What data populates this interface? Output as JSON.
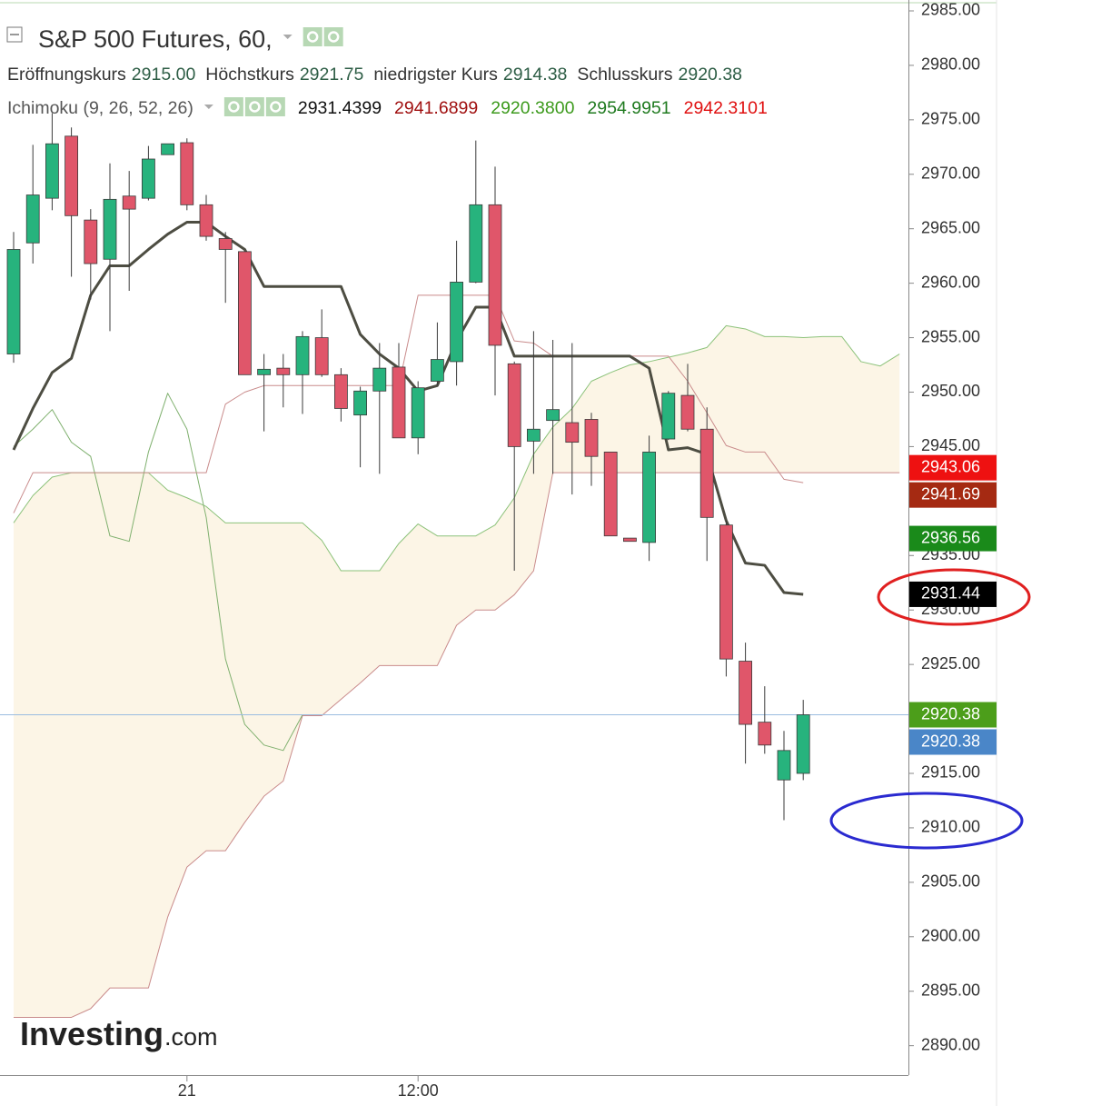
{
  "chart_data": {
    "type": "candlestick",
    "title": "S&P 500 Futures, 60,",
    "ohlc_legend": [
      {
        "label": "Eröffnungskurs",
        "value": "2915.00"
      },
      {
        "label": "Höchstkurs",
        "value": "2921.75"
      },
      {
        "label": "niedrigster Kurs",
        "value": "2914.38"
      },
      {
        "label": "Schlusskurs",
        "value": "2920.38"
      }
    ],
    "indicator": {
      "label": "Ichimoku (9, 26, 52, 26)",
      "readouts": [
        {
          "text": "2931.4399",
          "color": "#111111"
        },
        {
          "text": "2941.6899",
          "color": "#a01010"
        },
        {
          "text": "2920.3800",
          "color": "#3c9a1c"
        },
        {
          "text": "2954.9951",
          "color": "#1f7a1f"
        },
        {
          "text": "2942.3101",
          "color": "#e01010"
        }
      ]
    },
    "categories": [
      null,
      null,
      null,
      null,
      null,
      null,
      null,
      null,
      null,
      "21",
      null,
      null,
      null,
      null,
      null,
      null,
      null,
      null,
      null,
      null,
      null,
      "12:00",
      null,
      null,
      null,
      null,
      null,
      null,
      null,
      null,
      null,
      null,
      null,
      null,
      null,
      null,
      null,
      null,
      null,
      null,
      null,
      null,
      null,
      null,
      null,
      null,
      null
    ],
    "open": [
      2953.5,
      2963.7,
      2967.8,
      2973.5,
      2965.8,
      2962.2,
      2968,
      2967.8,
      2971.8,
      2972.9,
      2967.2,
      2964.1,
      2962.9,
      2951.6,
      2952.2,
      2951.6,
      2955,
      2951.6,
      2947.9,
      2950.1,
      2952.3,
      2945.8,
      2951,
      2952.8,
      2960.1,
      2967.2,
      2952.6,
      2945.5,
      2947.4,
      2947.2,
      2947.5,
      2944.5,
      2936.6,
      2936.2,
      2945.7,
      2949.7,
      2946.6,
      2937.8,
      2925.3,
      2919.7,
      2914.4,
      2915,
      null,
      null,
      null,
      null,
      null
    ],
    "high": [
      2964.7,
      2972.7,
      2975.6,
      2974.3,
      2966.8,
      2971,
      2970.3,
      2972.6,
      2972.8,
      2973.3,
      2968.1,
      2964.7,
      2962.9,
      2953.5,
      2953.5,
      2955.6,
      2957.6,
      2952.2,
      2950.5,
      2954.5,
      2954.5,
      2951,
      2956.4,
      2963.9,
      2973.1,
      2970.7,
      2952.8,
      2955.6,
      2954.8,
      2954.5,
      2948.1,
      2944.5,
      2936.6,
      2946,
      2950.1,
      2952.6,
      2948.6,
      2938.2,
      2927,
      2923,
      2918.9,
      2921.75,
      null,
      null,
      null,
      null,
      null
    ],
    "low": [
      2952.7,
      2961.8,
      2966.7,
      2960.6,
      2958.5,
      2955.6,
      2959.3,
      2967.6,
      2971.8,
      2966.7,
      2963.9,
      2958.2,
      2951.6,
      2946.4,
      2948.6,
      2948,
      2951.4,
      2947.3,
      2943.1,
      2942.5,
      2945.8,
      2944.3,
      2950.6,
      2950.6,
      2960,
      2949.7,
      2933.6,
      2942.5,
      2942.5,
      2940.6,
      2941.4,
      2936.8,
      2936.3,
      2934.5,
      2945.6,
      2946.4,
      2934.5,
      2923.9,
      2915.9,
      2916.8,
      2910.7,
      2914.38,
      null,
      null,
      null,
      null,
      null
    ],
    "close": [
      2963.1,
      2968.1,
      2972.8,
      2966.2,
      2961.8,
      2967.7,
      2966.8,
      2971.4,
      2972.8,
      2967.2,
      2964.3,
      2963.1,
      2951.6,
      2952.1,
      2951.6,
      2955.1,
      2951.6,
      2948.5,
      2950.1,
      2952.2,
      2945.8,
      2950.4,
      2953,
      2960.1,
      2967.2,
      2954.3,
      2945,
      2946.6,
      2948.4,
      2945.4,
      2944.1,
      2936.8,
      2936.3,
      2944.5,
      2949.9,
      2946.6,
      2938.5,
      2925.5,
      2919.5,
      2917.6,
      2917.1,
      2920.38,
      null,
      null,
      null,
      null,
      null
    ],
    "up_color": "#27b37d",
    "down_color": "#e0566a",
    "cloud_color": "#fcf5e6",
    "lines": [
      {
        "color": "#c98b8b",
        "width": 1,
        "values": [
          2892.6,
          2892.6,
          2892.6,
          2892.6,
          2893.4,
          2895.3,
          2895.3,
          2895.3,
          2901.8,
          2906.4,
          2907.9,
          2907.9,
          2910.5,
          2912.9,
          2914.3,
          2920.3,
          2920.3,
          2921.8,
          2923.3,
          2924.9,
          2924.9,
          2924.9,
          2924.9,
          2928.6,
          2930,
          2930,
          2931.4,
          2933.6,
          2942.6,
          2942.6,
          2942.6,
          2942.6,
          2942.6,
          2942.6,
          2942.6,
          2942.6,
          2942.6,
          2942.6,
          2942.6,
          2942.6,
          2942.6,
          2942.6,
          2942.6,
          2942.6,
          2942.6,
          2942.6,
          2942.6
        ]
      },
      {
        "color": "#8cc27a",
        "width": 1,
        "values": [
          2938,
          2940.5,
          2942.2,
          2942.6,
          2942.6,
          2942.6,
          2942.6,
          2942.6,
          2941,
          2940.3,
          2939.5,
          2938,
          2938,
          2938,
          2938,
          2938,
          2936.4,
          2933.6,
          2933.6,
          2933.6,
          2936.1,
          2937.9,
          2936.8,
          2936.8,
          2936.8,
          2937.8,
          2940.3,
          2944.3,
          2946.8,
          2948.5,
          2951,
          2951.8,
          2952.5,
          2952.8,
          2953.2,
          2953.6,
          2954.1,
          2956.1,
          2955.8,
          2955.1,
          2955.1,
          2955,
          2955.1,
          2955.1,
          2952.8,
          2952.4,
          2953.5
        ]
      },
      {
        "color": "#7fb06e",
        "width": 1,
        "values": [
          2945,
          2946.6,
          2948.4,
          2945.4,
          2944.1,
          2936.8,
          2936.3,
          2944.5,
          2949.9,
          2946.6,
          2938.5,
          2925.5,
          2919.5,
          2917.6,
          2917.1,
          2920.38,
          null,
          null,
          null,
          null,
          null,
          null,
          null,
          null,
          null,
          null,
          null,
          null,
          null,
          null,
          null,
          null,
          null,
          null,
          null,
          null,
          null,
          null,
          null,
          null,
          null,
          null,
          null,
          null,
          null,
          null,
          null
        ]
      },
      {
        "color": "#c98b8b",
        "width": 1,
        "values": [
          2938.9,
          2942.6,
          2942.6,
          2942.6,
          2942.6,
          2942.6,
          2942.6,
          2942.6,
          2942.6,
          2942.6,
          2942.6,
          2948.9,
          2950,
          2950.6,
          2950.6,
          2950.6,
          2950.6,
          2950.6,
          2950.6,
          2950.6,
          2950.6,
          2958.9,
          2958.9,
          2958.9,
          2958.9,
          2958.9,
          2954.7,
          2954.5,
          2953.3,
          2953.3,
          2953.3,
          2953.3,
          2953.3,
          2953.3,
          2953.3,
          2951,
          2948.1,
          2945.1,
          2944.5,
          2944.5,
          2942,
          2941.69,
          null,
          null,
          null,
          null,
          null
        ]
      },
      {
        "color": "#4d4d42",
        "width": 3,
        "values": [
          2944.7,
          2948.5,
          2951.8,
          2953.1,
          2958.9,
          2961.6,
          2961.6,
          2963.1,
          2964.5,
          2965.6,
          2965.6,
          2964.3,
          2963.1,
          2959.7,
          2959.7,
          2959.7,
          2959.7,
          2959.7,
          2955.3,
          2953.5,
          2952.2,
          2950.1,
          2950.6,
          2954.7,
          2957.8,
          2957.8,
          2953.3,
          2953.3,
          2953.3,
          2953.3,
          2953.3,
          2953.3,
          2953.3,
          2952.2,
          2944.7,
          2944.9,
          2944.3,
          2938.2,
          2934.3,
          2934.1,
          2931.6,
          2931.44,
          null,
          null,
          null,
          null,
          null
        ]
      }
    ],
    "ylim": [
      2887.3,
      2986
    ],
    "yticks": [
      {
        "value": 2985,
        "label": "2985.00"
      },
      {
        "value": 2980,
        "label": "2980.00"
      },
      {
        "value": 2975,
        "label": "2975.00"
      },
      {
        "value": 2970,
        "label": "2970.00"
      },
      {
        "value": 2965,
        "label": "2965.00"
      },
      {
        "value": 2960,
        "label": "2960.00"
      },
      {
        "value": 2955,
        "label": "2955.00"
      },
      {
        "value": 2950,
        "label": "2950.00"
      },
      {
        "value": 2945,
        "label": "2945.00"
      },
      {
        "value": 2940,
        "label": "2940.00"
      },
      {
        "value": 2935,
        "label": "2935.00"
      },
      {
        "value": 2930,
        "label": "2930.00"
      },
      {
        "value": 2925,
        "label": "2925.00"
      },
      {
        "value": 2920,
        "label": "2920.00"
      },
      {
        "value": 2915,
        "label": "2915.00"
      },
      {
        "value": 2910,
        "label": "2910.00"
      },
      {
        "value": 2905,
        "label": "2905.00"
      },
      {
        "value": 2900,
        "label": "2900.00"
      },
      {
        "value": 2895,
        "label": "2895.00"
      },
      {
        "value": 2890,
        "label": "2890.00"
      }
    ],
    "price_markers": [
      {
        "value": 2943.06,
        "color": "#ee1111"
      },
      {
        "value": 2941.69,
        "color": "#a52a12"
      },
      {
        "value": 2936.56,
        "color": "#1a8a1a"
      },
      {
        "value": 2931.44,
        "color": "#000000"
      },
      {
        "value": 2920.38,
        "color": "#4c9e1a"
      },
      {
        "value": 2920.38,
        "color": "#4a86c8"
      }
    ],
    "current_line_color": "#9bbce0",
    "watermark": "Investing",
    "watermark_suffix": ".com"
  }
}
